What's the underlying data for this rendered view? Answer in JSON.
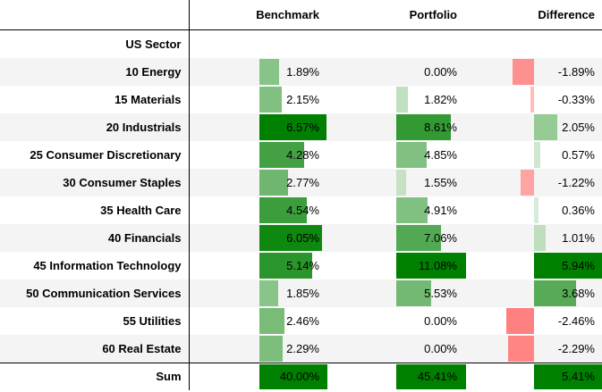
{
  "columns": {
    "label": "",
    "benchmark": "Benchmark",
    "portfolio": "Portfolio",
    "difference": "Difference"
  },
  "index_name": "US Sector",
  "rows": [
    {
      "label": "10 Energy",
      "benchmark": "1.89%",
      "portfolio": "0.00%",
      "difference": "-1.89%",
      "b": 1.89,
      "p": 0.0,
      "d": -1.89
    },
    {
      "label": "15 Materials",
      "benchmark": "2.15%",
      "portfolio": "1.82%",
      "difference": "-0.33%",
      "b": 2.15,
      "p": 1.82,
      "d": -0.33
    },
    {
      "label": "20 Industrials",
      "benchmark": "6.57%",
      "portfolio": "8.61%",
      "difference": "2.05%",
      "b": 6.57,
      "p": 8.61,
      "d": 2.05
    },
    {
      "label": "25 Consumer Discretionary",
      "benchmark": "4.28%",
      "portfolio": "4.85%",
      "difference": "0.57%",
      "b": 4.28,
      "p": 4.85,
      "d": 0.57
    },
    {
      "label": "30 Consumer Staples",
      "benchmark": "2.77%",
      "portfolio": "1.55%",
      "difference": "-1.22%",
      "b": 2.77,
      "p": 1.55,
      "d": -1.22
    },
    {
      "label": "35 Health Care",
      "benchmark": "4.54%",
      "portfolio": "4.91%",
      "difference": "0.36%",
      "b": 4.54,
      "p": 4.91,
      "d": 0.36
    },
    {
      "label": "40 Financials",
      "benchmark": "6.05%",
      "portfolio": "7.06%",
      "difference": "1.01%",
      "b": 6.05,
      "p": 7.06,
      "d": 1.01
    },
    {
      "label": "45 Information Technology",
      "benchmark": "5.14%",
      "portfolio": "11.08%",
      "difference": "5.94%",
      "b": 5.14,
      "p": 11.08,
      "d": 5.94
    },
    {
      "label": "50 Communication Services",
      "benchmark": "1.85%",
      "portfolio": "5.53%",
      "difference": "3.68%",
      "b": 1.85,
      "p": 5.53,
      "d": 3.68
    },
    {
      "label": "55 Utilities",
      "benchmark": "2.46%",
      "portfolio": "0.00%",
      "difference": "-2.46%",
      "b": 2.46,
      "p": 0.0,
      "d": -2.46
    },
    {
      "label": "60 Real Estate",
      "benchmark": "2.29%",
      "portfolio": "0.00%",
      "difference": "-2.29%",
      "b": 2.29,
      "p": 0.0,
      "d": -2.29
    }
  ],
  "sum": {
    "label": "Sum",
    "benchmark": "40.00%",
    "portfolio": "45.41%",
    "difference": "5.41%"
  },
  "colors": {
    "positive": "#008000",
    "negative": "#ff8080",
    "alt_row": "#f4f4f4"
  }
}
